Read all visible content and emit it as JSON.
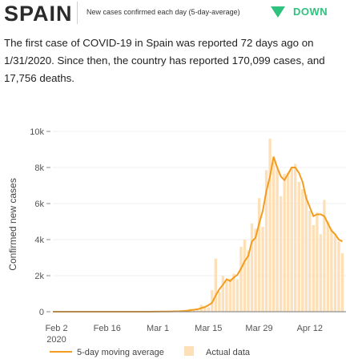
{
  "header": {
    "country": "SPAIN",
    "metric_label": "New cases confirmed each day (5-day-average)",
    "trend_label": "DOWN",
    "trend_color": "#2ec27e",
    "trend_icon": "triangle-down-icon"
  },
  "summary": "The first case of COVID-19 in Spain was reported 72 days ago on 1/31/2020. Since then, the country has reported 170,099 cases, and 17,756 deaths.",
  "legend": {
    "line_label": "5-day moving average",
    "bar_label": "Actual data"
  },
  "colors": {
    "line": "#f39c1f",
    "bars": "#fde0b8",
    "axis": "#555555"
  },
  "chart_data": {
    "type": "bar",
    "ylabel": "Confirmed new cases",
    "xlabel": "",
    "ylim": [
      0,
      10000
    ],
    "yticks": [
      0,
      2000,
      4000,
      6000,
      8000,
      10000
    ],
    "ytick_labels": [
      "0",
      "2k",
      "4k",
      "6k",
      "8k",
      "10k"
    ],
    "xticks": [
      {
        "label": "Feb 2",
        "sub": "2020",
        "day": 2
      },
      {
        "label": "Feb 16",
        "sub": "",
        "day": 16
      },
      {
        "label": "Mar 1",
        "sub": "",
        "day": 30
      },
      {
        "label": "Mar 15",
        "sub": "",
        "day": 44
      },
      {
        "label": "Mar 29",
        "sub": "",
        "day": 58
      },
      {
        "label": "Apr 12",
        "sub": "",
        "day": 72
      }
    ],
    "x_start_day": 1,
    "series": [
      {
        "kind": "bar",
        "values": [
          1,
          0,
          0,
          0,
          0,
          0,
          0,
          0,
          0,
          0,
          0,
          1,
          0,
          0,
          0,
          0,
          0,
          0,
          0,
          0,
          0,
          0,
          0,
          0,
          0,
          0,
          3,
          2,
          6,
          14,
          8,
          13,
          28,
          19,
          40,
          24,
          65,
          95,
          158,
          124,
          157,
          384,
          293,
          250,
          1200,
          2950,
          1100,
          1990,
          1750,
          1840,
          2100,
          1800,
          3600,
          4000,
          3400,
          4900,
          4600,
          6300,
          4700,
          7850,
          9600,
          8400,
          7900,
          6400,
          7650,
          7700,
          8000,
          8200,
          7200,
          6800,
          6500,
          5600,
          4800,
          5500,
          4300,
          6200,
          5000,
          4600,
          4300,
          3900,
          3250
        ],
        "start_day": 1
      },
      {
        "kind": "line",
        "values": [
          0,
          0,
          0,
          0,
          0,
          0,
          0,
          0,
          0,
          0,
          0,
          0,
          0,
          0,
          0,
          0,
          0,
          0,
          0,
          0,
          0,
          0,
          0,
          0,
          0,
          0,
          1,
          2,
          3,
          5,
          7,
          9,
          13,
          17,
          22,
          27,
          40,
          55,
          85,
          110,
          140,
          200,
          260,
          360,
          500,
          900,
          1250,
          1500,
          1800,
          1700,
          1900,
          2050,
          2400,
          2800,
          3100,
          3900,
          4100,
          4900,
          5600,
          6700,
          7500,
          8600,
          8000,
          7500,
          7300,
          7650,
          8000,
          8000,
          7700,
          7200,
          6300,
          5800,
          5300,
          5400,
          5400,
          5300,
          4900,
          4500,
          4300,
          4000,
          3900
        ],
        "start_day": 1
      }
    ]
  }
}
